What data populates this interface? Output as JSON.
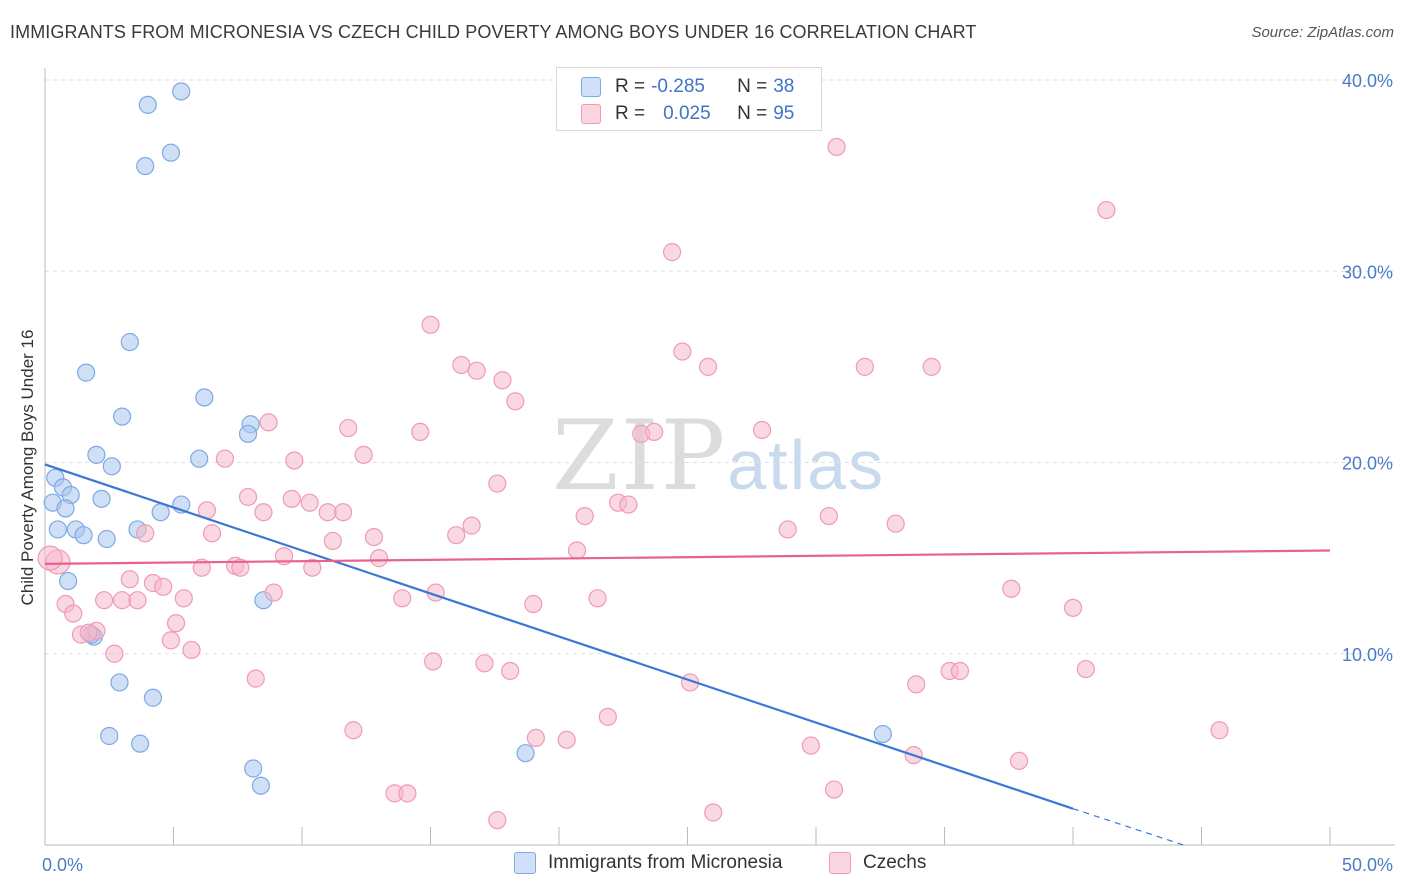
{
  "title": "IMMIGRANTS FROM MICRONESIA VS CZECH CHILD POVERTY AMONG BOYS UNDER 16 CORRELATION CHART",
  "source": "Source: ZipAtlas.com",
  "watermark": {
    "zip": "ZIP",
    "atlas": "atlas"
  },
  "legend": {
    "rows": [
      {
        "r_label": "R =",
        "r_value": "-0.285",
        "n_label": "N =",
        "n_value": "38",
        "color": "#a8c6ef"
      },
      {
        "r_label": "R =",
        "r_value": "0.025",
        "n_label": "N =",
        "n_value": "95",
        "color": "#f6b8cb"
      }
    ]
  },
  "bottom_legend": [
    {
      "label": "Immigrants from Micronesia",
      "color": "#a8c6ef"
    },
    {
      "label": "Czechs",
      "color": "#f6b8cb"
    }
  ],
  "chart_data": {
    "type": "scatter",
    "ylabel": "Child Poverty Among Boys Under 16",
    "xlim": [
      0,
      50
    ],
    "ylim": [
      0,
      40
    ],
    "x_tick_labels": [
      "0.0%",
      "50.0%"
    ],
    "y_ticks": [
      10,
      20,
      30,
      40
    ],
    "y_tick_labels": [
      "10.0%",
      "20.0%",
      "30.0%",
      "40.0%"
    ],
    "grid": true,
    "colors": {
      "blue": "#3a78d4",
      "pink": "#e8628f",
      "blue_fill": "#a8c6ef",
      "pink_fill": "#f6b8cb"
    },
    "series": [
      {
        "name": "Immigrants from Micronesia",
        "color": "#3a78d4",
        "points": [
          [
            5.3,
            39.4
          ],
          [
            4.0,
            38.7
          ],
          [
            4.9,
            36.2
          ],
          [
            3.9,
            35.5
          ],
          [
            3.3,
            26.3
          ],
          [
            1.6,
            24.7
          ],
          [
            3.0,
            22.4
          ],
          [
            6.2,
            23.4
          ],
          [
            8.0,
            22.0
          ],
          [
            7.9,
            21.5
          ],
          [
            2.0,
            20.4
          ],
          [
            2.6,
            19.8
          ],
          [
            6.0,
            20.2
          ],
          [
            0.4,
            19.2
          ],
          [
            0.7,
            18.7
          ],
          [
            1.0,
            18.3
          ],
          [
            2.2,
            18.1
          ],
          [
            0.3,
            17.9
          ],
          [
            0.8,
            17.6
          ],
          [
            5.3,
            17.8
          ],
          [
            4.5,
            17.4
          ],
          [
            3.6,
            16.5
          ],
          [
            0.5,
            16.5
          ],
          [
            1.2,
            16.5
          ],
          [
            1.5,
            16.2
          ],
          [
            2.4,
            16.0
          ],
          [
            0.9,
            13.8
          ],
          [
            8.5,
            12.8
          ],
          [
            1.9,
            10.9
          ],
          [
            2.9,
            8.5
          ],
          [
            4.2,
            7.7
          ],
          [
            2.5,
            5.7
          ],
          [
            3.7,
            5.3
          ],
          [
            18.7,
            4.8
          ],
          [
            32.6,
            5.8
          ],
          [
            8.1,
            4.0
          ],
          [
            8.4,
            3.1
          ],
          [
            1.8,
            11.0
          ]
        ]
      },
      {
        "name": "Czechs",
        "color": "#e8628f",
        "points": [
          [
            30.8,
            36.5
          ],
          [
            41.3,
            33.2
          ],
          [
            24.4,
            31.0
          ],
          [
            15.0,
            27.2
          ],
          [
            24.8,
            25.8
          ],
          [
            25.8,
            25.0
          ],
          [
            31.9,
            25.0
          ],
          [
            34.5,
            25.0
          ],
          [
            16.2,
            25.1
          ],
          [
            16.8,
            24.8
          ],
          [
            17.8,
            24.3
          ],
          [
            18.3,
            23.2
          ],
          [
            8.7,
            22.1
          ],
          [
            11.8,
            21.8
          ],
          [
            14.6,
            21.6
          ],
          [
            23.2,
            21.5
          ],
          [
            23.7,
            21.6
          ],
          [
            27.9,
            21.7
          ],
          [
            12.4,
            20.4
          ],
          [
            7.0,
            20.2
          ],
          [
            9.7,
            20.1
          ],
          [
            17.6,
            18.9
          ],
          [
            7.9,
            18.2
          ],
          [
            9.6,
            18.1
          ],
          [
            10.3,
            17.9
          ],
          [
            22.3,
            17.9
          ],
          [
            22.7,
            17.8
          ],
          [
            6.3,
            17.5
          ],
          [
            8.5,
            17.4
          ],
          [
            11.0,
            17.4
          ],
          [
            11.6,
            17.4
          ],
          [
            21.0,
            17.2
          ],
          [
            30.5,
            17.2
          ],
          [
            33.1,
            16.8
          ],
          [
            16.6,
            16.7
          ],
          [
            28.9,
            16.5
          ],
          [
            3.9,
            16.3
          ],
          [
            6.5,
            16.3
          ],
          [
            12.8,
            16.1
          ],
          [
            16.0,
            16.2
          ],
          [
            11.2,
            15.9
          ],
          [
            20.7,
            15.4
          ],
          [
            9.3,
            15.1
          ],
          [
            13.0,
            15.0
          ],
          [
            0.5,
            14.8
          ],
          [
            6.1,
            14.5
          ],
          [
            7.4,
            14.6
          ],
          [
            7.6,
            14.5
          ],
          [
            10.4,
            14.5
          ],
          [
            3.3,
            13.9
          ],
          [
            4.2,
            13.7
          ],
          [
            4.6,
            13.5
          ],
          [
            8.9,
            13.2
          ],
          [
            15.2,
            13.2
          ],
          [
            37.6,
            13.4
          ],
          [
            2.3,
            12.8
          ],
          [
            3.0,
            12.8
          ],
          [
            3.6,
            12.8
          ],
          [
            5.4,
            12.9
          ],
          [
            13.9,
            12.9
          ],
          [
            21.5,
            12.9
          ],
          [
            19.0,
            12.6
          ],
          [
            0.8,
            12.6
          ],
          [
            40.0,
            12.4
          ],
          [
            1.1,
            12.1
          ],
          [
            5.1,
            11.6
          ],
          [
            1.4,
            11.0
          ],
          [
            2.0,
            11.2
          ],
          [
            4.9,
            10.7
          ],
          [
            5.7,
            10.2
          ],
          [
            2.7,
            10.0
          ],
          [
            15.1,
            9.6
          ],
          [
            17.1,
            9.5
          ],
          [
            18.1,
            9.1
          ],
          [
            35.2,
            9.1
          ],
          [
            35.6,
            9.1
          ],
          [
            40.5,
            9.2
          ],
          [
            8.2,
            8.7
          ],
          [
            25.1,
            8.5
          ],
          [
            33.9,
            8.4
          ],
          [
            21.9,
            6.7
          ],
          [
            12.0,
            6.0
          ],
          [
            19.1,
            5.6
          ],
          [
            20.3,
            5.5
          ],
          [
            29.8,
            5.2
          ],
          [
            33.8,
            4.7
          ],
          [
            37.9,
            4.4
          ],
          [
            45.7,
            6.0
          ],
          [
            30.7,
            2.9
          ],
          [
            13.6,
            2.7
          ],
          [
            14.1,
            2.7
          ],
          [
            17.6,
            1.3
          ],
          [
            26.0,
            1.7
          ],
          [
            0.2,
            15.0
          ],
          [
            1.7,
            11.1
          ]
        ]
      }
    ],
    "trend_lines": [
      {
        "series": "Immigrants from Micronesia",
        "x": [
          0,
          40
        ],
        "y": [
          19.9,
          1.9
        ],
        "dashed_to": [
          44.3,
          0
        ]
      },
      {
        "series": "Czechs",
        "x": [
          0,
          50
        ],
        "y": [
          14.7,
          15.4
        ]
      }
    ]
  }
}
